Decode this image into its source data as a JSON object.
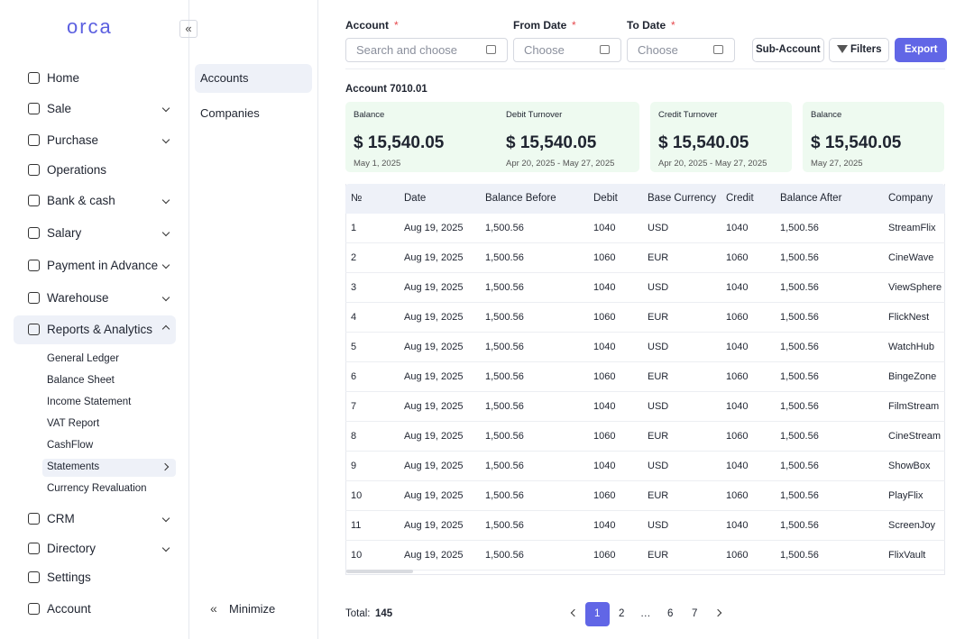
{
  "sidebar": {
    "logo": "orca",
    "nav": [
      {
        "label": "Home",
        "chevron": "none"
      },
      {
        "label": "Sale",
        "chevron": "down"
      },
      {
        "label": "Purchase",
        "chevron": "down"
      },
      {
        "label": "Operations",
        "chevron": "none"
      },
      {
        "label": "Bank & cash",
        "chevron": "down"
      },
      {
        "label": "Salary",
        "chevron": "down"
      },
      {
        "label": "Payment in Advance",
        "chevron": "down"
      },
      {
        "label": "Warehouse",
        "chevron": "down"
      },
      {
        "label": "Reports & Analytics",
        "chevron": "up",
        "active": true,
        "submenu": [
          {
            "label": "General Ledger"
          },
          {
            "label": "Balance Sheet"
          },
          {
            "label": "Income Statement"
          },
          {
            "label": "VAT Report"
          },
          {
            "label": "CashFlow"
          },
          {
            "label": "Statements",
            "active": true,
            "chevron": "right"
          },
          {
            "label": "Currency Revaluation"
          }
        ]
      },
      {
        "label": "CRM",
        "chevron": "down"
      },
      {
        "label": "Directory",
        "chevron": "down"
      },
      {
        "label": "Settings",
        "chevron": "none"
      },
      {
        "label": "Account",
        "chevron": "none"
      }
    ]
  },
  "subpanel": {
    "items": [
      {
        "label": "Accounts",
        "active": true
      },
      {
        "label": "Companies"
      }
    ],
    "minimize": "Minimize"
  },
  "filters": {
    "fields": [
      {
        "label": "Account",
        "required": "*",
        "placeholder": "Search and choose"
      },
      {
        "label": "From Date",
        "required": "*",
        "placeholder": "Choose"
      },
      {
        "label": "To Date",
        "required": "*",
        "placeholder": "Choose"
      }
    ],
    "buttons": [
      "Sub-Account",
      "Filters",
      "Export"
    ]
  },
  "account_title": "Account 7010.01",
  "cards": [
    {
      "label": "Balance",
      "amount": "$ 15,540.05",
      "date": "May 1, 2025"
    },
    {
      "label": "Debit Turnover",
      "amount": "$ 15,540.05",
      "date": "Apr 20, 2025 - May 27, 2025"
    },
    {
      "label": "Credit Turnover",
      "amount": "$ 15,540.05",
      "date": "Apr 20, 2025 - May 27, 2025"
    },
    {
      "label": "Balance",
      "amount": "$ 15,540.05",
      "date": "May 27, 2025"
    }
  ],
  "table": {
    "headers": [
      "№",
      "Date",
      "Balance Before",
      "Debit",
      "Base Currency",
      "Credit",
      "Balance After",
      "Company"
    ],
    "rows": [
      [
        "1",
        "Aug 19, 2025",
        "1,500.56",
        "1040",
        "USD",
        "1040",
        "1,500.56",
        "StreamFlix"
      ],
      [
        "2",
        "Aug 19, 2025",
        "1,500.56",
        "1060",
        "EUR",
        "1060",
        "1,500.56",
        "CineWave"
      ],
      [
        "3",
        "Aug 19, 2025",
        "1,500.56",
        "1040",
        "USD",
        "1040",
        "1,500.56",
        "ViewSphere"
      ],
      [
        "4",
        "Aug 19, 2025",
        "1,500.56",
        "1060",
        "EUR",
        "1060",
        "1,500.56",
        "FlickNest"
      ],
      [
        "5",
        "Aug 19, 2025",
        "1,500.56",
        "1040",
        "USD",
        "1040",
        "1,500.56",
        "WatchHub"
      ],
      [
        "6",
        "Aug 19, 2025",
        "1,500.56",
        "1060",
        "EUR",
        "1060",
        "1,500.56",
        "BingeZone"
      ],
      [
        "7",
        "Aug 19, 2025",
        "1,500.56",
        "1040",
        "USD",
        "1040",
        "1,500.56",
        "FilmStream"
      ],
      [
        "8",
        "Aug 19, 2025",
        "1,500.56",
        "1060",
        "EUR",
        "1060",
        "1,500.56",
        "CineStream"
      ],
      [
        "9",
        "Aug 19, 2025",
        "1,500.56",
        "1040",
        "USD",
        "1040",
        "1,500.56",
        "ShowBox"
      ],
      [
        "10",
        "Aug 19, 2025",
        "1,500.56",
        "1060",
        "EUR",
        "1060",
        "1,500.56",
        "PlayFlix"
      ],
      [
        "11",
        "Aug 19, 2025",
        "1,500.56",
        "1040",
        "USD",
        "1040",
        "1,500.56",
        "ScreenJoy"
      ],
      [
        "10",
        "Aug 19, 2025",
        "1,500.56",
        "1060",
        "EUR",
        "1060",
        "1,500.56",
        "FlixVault"
      ]
    ]
  },
  "footer": {
    "total_label": "Total:",
    "total": "145",
    "pages": [
      {
        "label": "1",
        "active": true
      },
      {
        "label": "2"
      },
      {
        "label": "…"
      },
      {
        "label": "6"
      },
      {
        "label": "7"
      }
    ]
  }
}
